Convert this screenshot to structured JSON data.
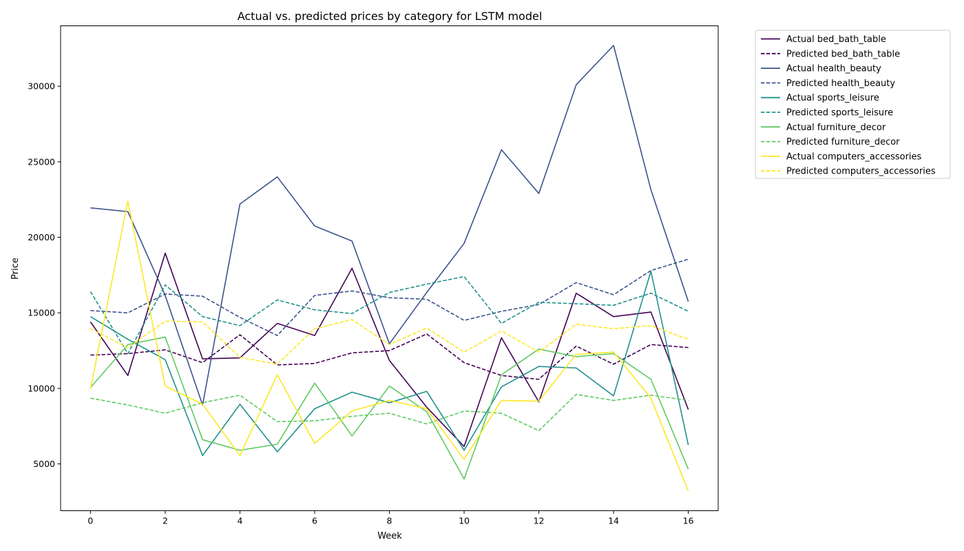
{
  "chart_data": {
    "type": "line",
    "title": "Actual vs. predicted prices by category for LSTM model",
    "xlabel": "Week",
    "ylabel": "Price",
    "x": [
      0,
      1,
      2,
      3,
      4,
      5,
      6,
      7,
      8,
      9,
      10,
      11,
      12,
      13,
      14,
      15,
      16
    ],
    "xlim": [
      -0.8,
      16.8
    ],
    "ylim": [
      1900,
      34000
    ],
    "xticks": [
      0,
      2,
      4,
      6,
      8,
      10,
      12,
      14,
      16
    ],
    "yticks": [
      5000,
      10000,
      15000,
      20000,
      25000,
      30000
    ],
    "grid": false,
    "legend_position": "outside-top-right",
    "series": [
      {
        "name": "Actual bed_bath_table",
        "color": "#440154",
        "dash": "solid",
        "values": [
          14400,
          10850,
          18950,
          11950,
          12020,
          14300,
          13500,
          17950,
          11850,
          8750,
          6150,
          13350,
          9100,
          16300,
          14750,
          15050,
          8600
        ]
      },
      {
        "name": "Predicted bed_bath_table",
        "color": "#440154",
        "dash": "dashed",
        "values": [
          12200,
          12300,
          12550,
          11700,
          13550,
          11550,
          11650,
          12350,
          12500,
          13600,
          11700,
          10850,
          10600,
          12800,
          11600,
          12900,
          12700
        ]
      },
      {
        "name": "Actual health_beauty",
        "color": "#3b528b",
        "dash": "solid",
        "values": [
          21950,
          21700,
          16150,
          8900,
          22200,
          24000,
          20750,
          19750,
          12950,
          16350,
          19600,
          25800,
          22900,
          30100,
          32700,
          23150,
          15750
        ]
      },
      {
        "name": "Predicted health_beauty",
        "color": "#3b528b",
        "dash": "dashed",
        "values": [
          15150,
          15000,
          16250,
          16100,
          14700,
          13500,
          16150,
          16450,
          16000,
          15900,
          14500,
          15100,
          15550,
          17000,
          16200,
          17800,
          18550
        ]
      },
      {
        "name": "Actual sports_leisure",
        "color": "#21918c",
        "dash": "solid",
        "values": [
          14750,
          13250,
          11900,
          5550,
          8950,
          5800,
          8650,
          9750,
          9050,
          9800,
          5900,
          10100,
          11450,
          11350,
          9500,
          17750,
          6250
        ]
      },
      {
        "name": "Predicted sports_leisure",
        "color": "#21918c",
        "dash": "dashed",
        "values": [
          16400,
          12300,
          16850,
          14750,
          14150,
          15850,
          15200,
          14950,
          16350,
          16900,
          17400,
          14300,
          15700,
          15600,
          15500,
          16300,
          15100
        ]
      },
      {
        "name": "Actual furniture_decor",
        "color": "#5ec962",
        "dash": "solid",
        "values": [
          10050,
          12900,
          13400,
          6600,
          5900,
          6300,
          10350,
          6850,
          10150,
          8450,
          4000,
          10900,
          12600,
          12100,
          12300,
          10600,
          4650
        ]
      },
      {
        "name": "Predicted furniture_decor",
        "color": "#5ec962",
        "dash": "dashed",
        "values": [
          9350,
          8900,
          8350,
          9050,
          9550,
          7800,
          7850,
          8150,
          8350,
          7650,
          8500,
          8350,
          7200,
          9600,
          9200,
          9550,
          9200
        ]
      },
      {
        "name": "Actual computers_accessories",
        "color": "#fde725",
        "dash": "solid",
        "values": [
          9950,
          22400,
          10150,
          8950,
          5550,
          10900,
          6350,
          8500,
          9200,
          8650,
          5300,
          9200,
          9150,
          12250,
          12400,
          9350,
          3200
        ]
      },
      {
        "name": "Predicted computers_accessories",
        "color": "#fde725",
        "dash": "dashed",
        "values": [
          13950,
          12700,
          14450,
          14400,
          12050,
          11600,
          13950,
          14550,
          12900,
          14000,
          12400,
          13800,
          12400,
          14250,
          13950,
          14150,
          13250
        ]
      }
    ]
  }
}
